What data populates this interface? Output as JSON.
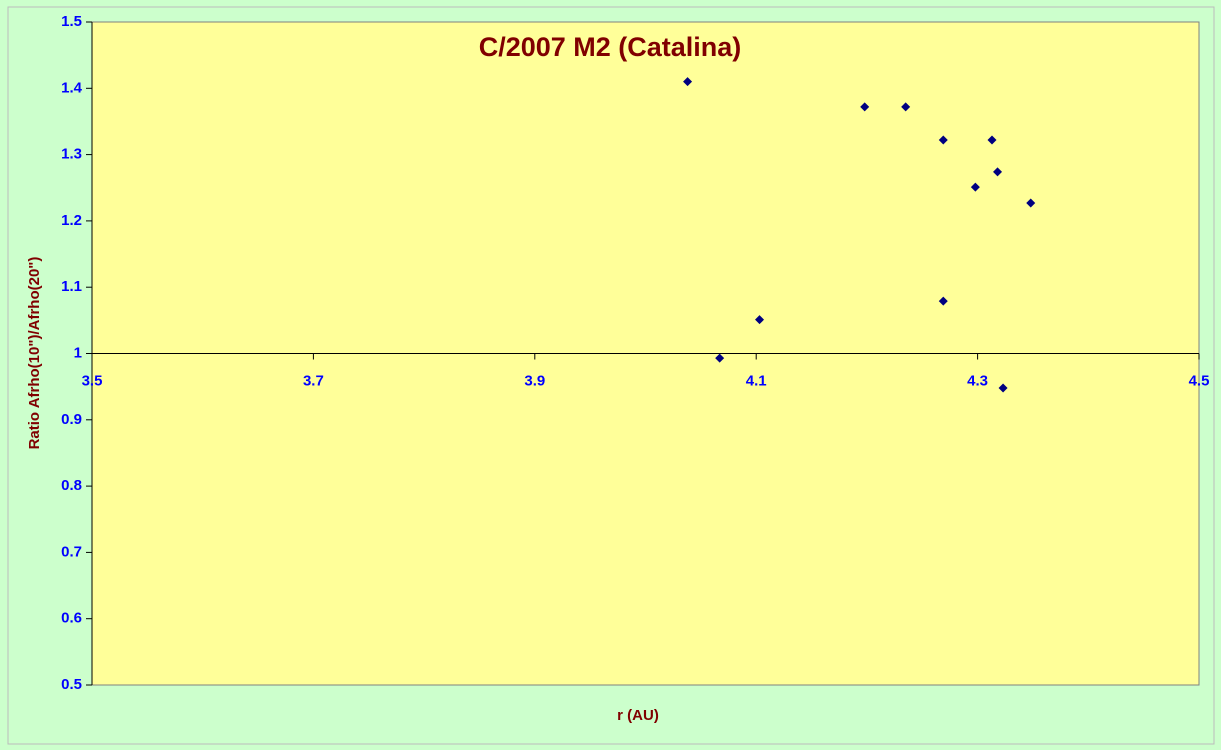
{
  "chart_data": {
    "type": "scatter",
    "title": "C/2007 M2 (Catalina)",
    "x_label": "r (AU)",
    "y_label": "Ratio Afrho(10\")/Afrho(20\")",
    "series": [
      {
        "color": "#000080",
        "x": [
          4.038,
          4.067,
          4.103,
          4.198,
          4.235,
          4.269,
          4.269,
          4.298,
          4.313,
          4.318,
          4.323,
          4.348
        ],
        "values": [
          1.41,
          0.993,
          1.051,
          1.372,
          1.372,
          1.322,
          1.079,
          1.251,
          1.322,
          1.274,
          0.948,
          1.227
        ]
      }
    ],
    "xlim": [
      3.5,
      4.5
    ],
    "xticks": [
      3.5,
      3.7,
      3.9,
      4.1,
      4.3,
      4.5
    ],
    "ylim": [
      0.5,
      1.5
    ],
    "yticks": [
      0.5,
      0.6,
      0.7,
      0.8,
      0.9,
      1,
      1.1,
      1.2,
      1.3,
      1.4,
      1.5
    ],
    "x_axis_crosses": 1
  }
}
